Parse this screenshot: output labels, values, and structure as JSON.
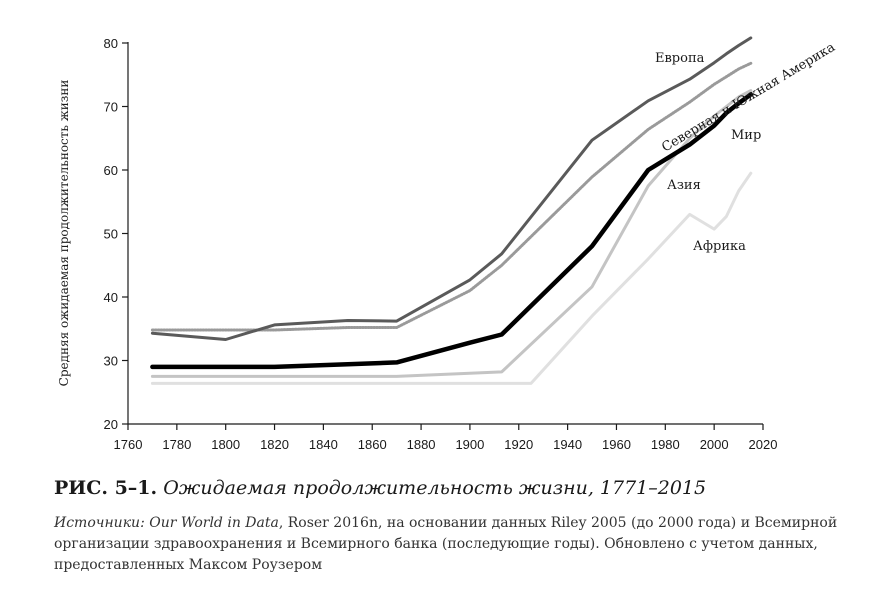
{
  "chart_data": {
    "type": "line",
    "xlim": [
      1760,
      2020
    ],
    "ylim": [
      20,
      80
    ],
    "xticks": [
      1760,
      1780,
      1800,
      1820,
      1840,
      1860,
      1880,
      1900,
      1920,
      1940,
      1960,
      1980,
      2000,
      2020
    ],
    "yticks": [
      20,
      30,
      40,
      50,
      60,
      70,
      80
    ],
    "ylabel": "Средняя ожидаемая продолжительность жизни",
    "series": [
      {
        "name": "Европа",
        "color": "#5a5a5a",
        "style": "solid",
        "x": [
          1770,
          1800,
          1820,
          1850,
          1870,
          1900,
          1913,
          1950,
          1973,
          1990,
          2000,
          2005,
          2010,
          2015
        ],
        "y": [
          34.3,
          33.3,
          35.6,
          36.3,
          36.2,
          42.7,
          46.8,
          64.7,
          70.9,
          74.3,
          76.9,
          78.3,
          79.6,
          80.8
        ]
      },
      {
        "name": "Северная и Южная Америка",
        "color": "#9a9a9a",
        "style": "dotted",
        "x": [
          1770,
          1800,
          1820,
          1850,
          1870,
          1900,
          1913,
          1950,
          1973,
          1990,
          2000,
          2005,
          2010,
          2015
        ],
        "y": [
          34.8,
          34.8,
          34.8,
          35.2,
          35.2,
          41.0,
          45.0,
          58.9,
          66.4,
          70.7,
          73.5,
          74.7,
          75.9,
          76.8
        ]
      },
      {
        "name": "Мир",
        "color": "#000000",
        "style": "solid",
        "x": [
          1770,
          1800,
          1820,
          1850,
          1870,
          1900,
          1913,
          1950,
          1973,
          1990,
          2000,
          2005,
          2010,
          2015
        ],
        "y": [
          29.0,
          29.0,
          29.0,
          29.4,
          29.7,
          32.8,
          34.1,
          48.0,
          60.0,
          64.0,
          67.0,
          69.0,
          70.5,
          71.9
        ]
      },
      {
        "name": "Азия",
        "color": "#c4c4c4",
        "style": "solid",
        "x": [
          1770,
          1800,
          1820,
          1850,
          1870,
          1900,
          1913,
          1950,
          1973,
          1990,
          2000,
          2005,
          2010,
          2015
        ],
        "y": [
          27.5,
          27.5,
          27.5,
          27.5,
          27.5,
          28.0,
          28.2,
          41.6,
          57.5,
          65.0,
          68.5,
          70.0,
          71.5,
          72.5
        ]
      },
      {
        "name": "Африка",
        "color": "#e0e0e0",
        "style": "solid",
        "x": [
          1770,
          1800,
          1820,
          1850,
          1870,
          1900,
          1913,
          1925,
          1950,
          1973,
          1990,
          2000,
          2005,
          2010,
          2015
        ],
        "y": [
          26.4,
          26.4,
          26.4,
          26.4,
          26.4,
          26.4,
          26.4,
          26.4,
          37.0,
          46.0,
          53.0,
          50.7,
          52.7,
          56.7,
          59.5
        ]
      }
    ]
  },
  "caption": {
    "figure_number": "РИС. 5–1.",
    "title": "Ожидаемая продолжительность жизни, 1771–2015"
  },
  "sources": {
    "label": "Источники:",
    "source_name": "Our World in Data",
    "text": ", Roser 2016n, на основании данных Riley 2005 (до 2000 года) и Всемирной организации здравоохранения и Всемирного банка (последующие годы). Обновлено с учетом данных, предоставленных Максом Роузером"
  }
}
